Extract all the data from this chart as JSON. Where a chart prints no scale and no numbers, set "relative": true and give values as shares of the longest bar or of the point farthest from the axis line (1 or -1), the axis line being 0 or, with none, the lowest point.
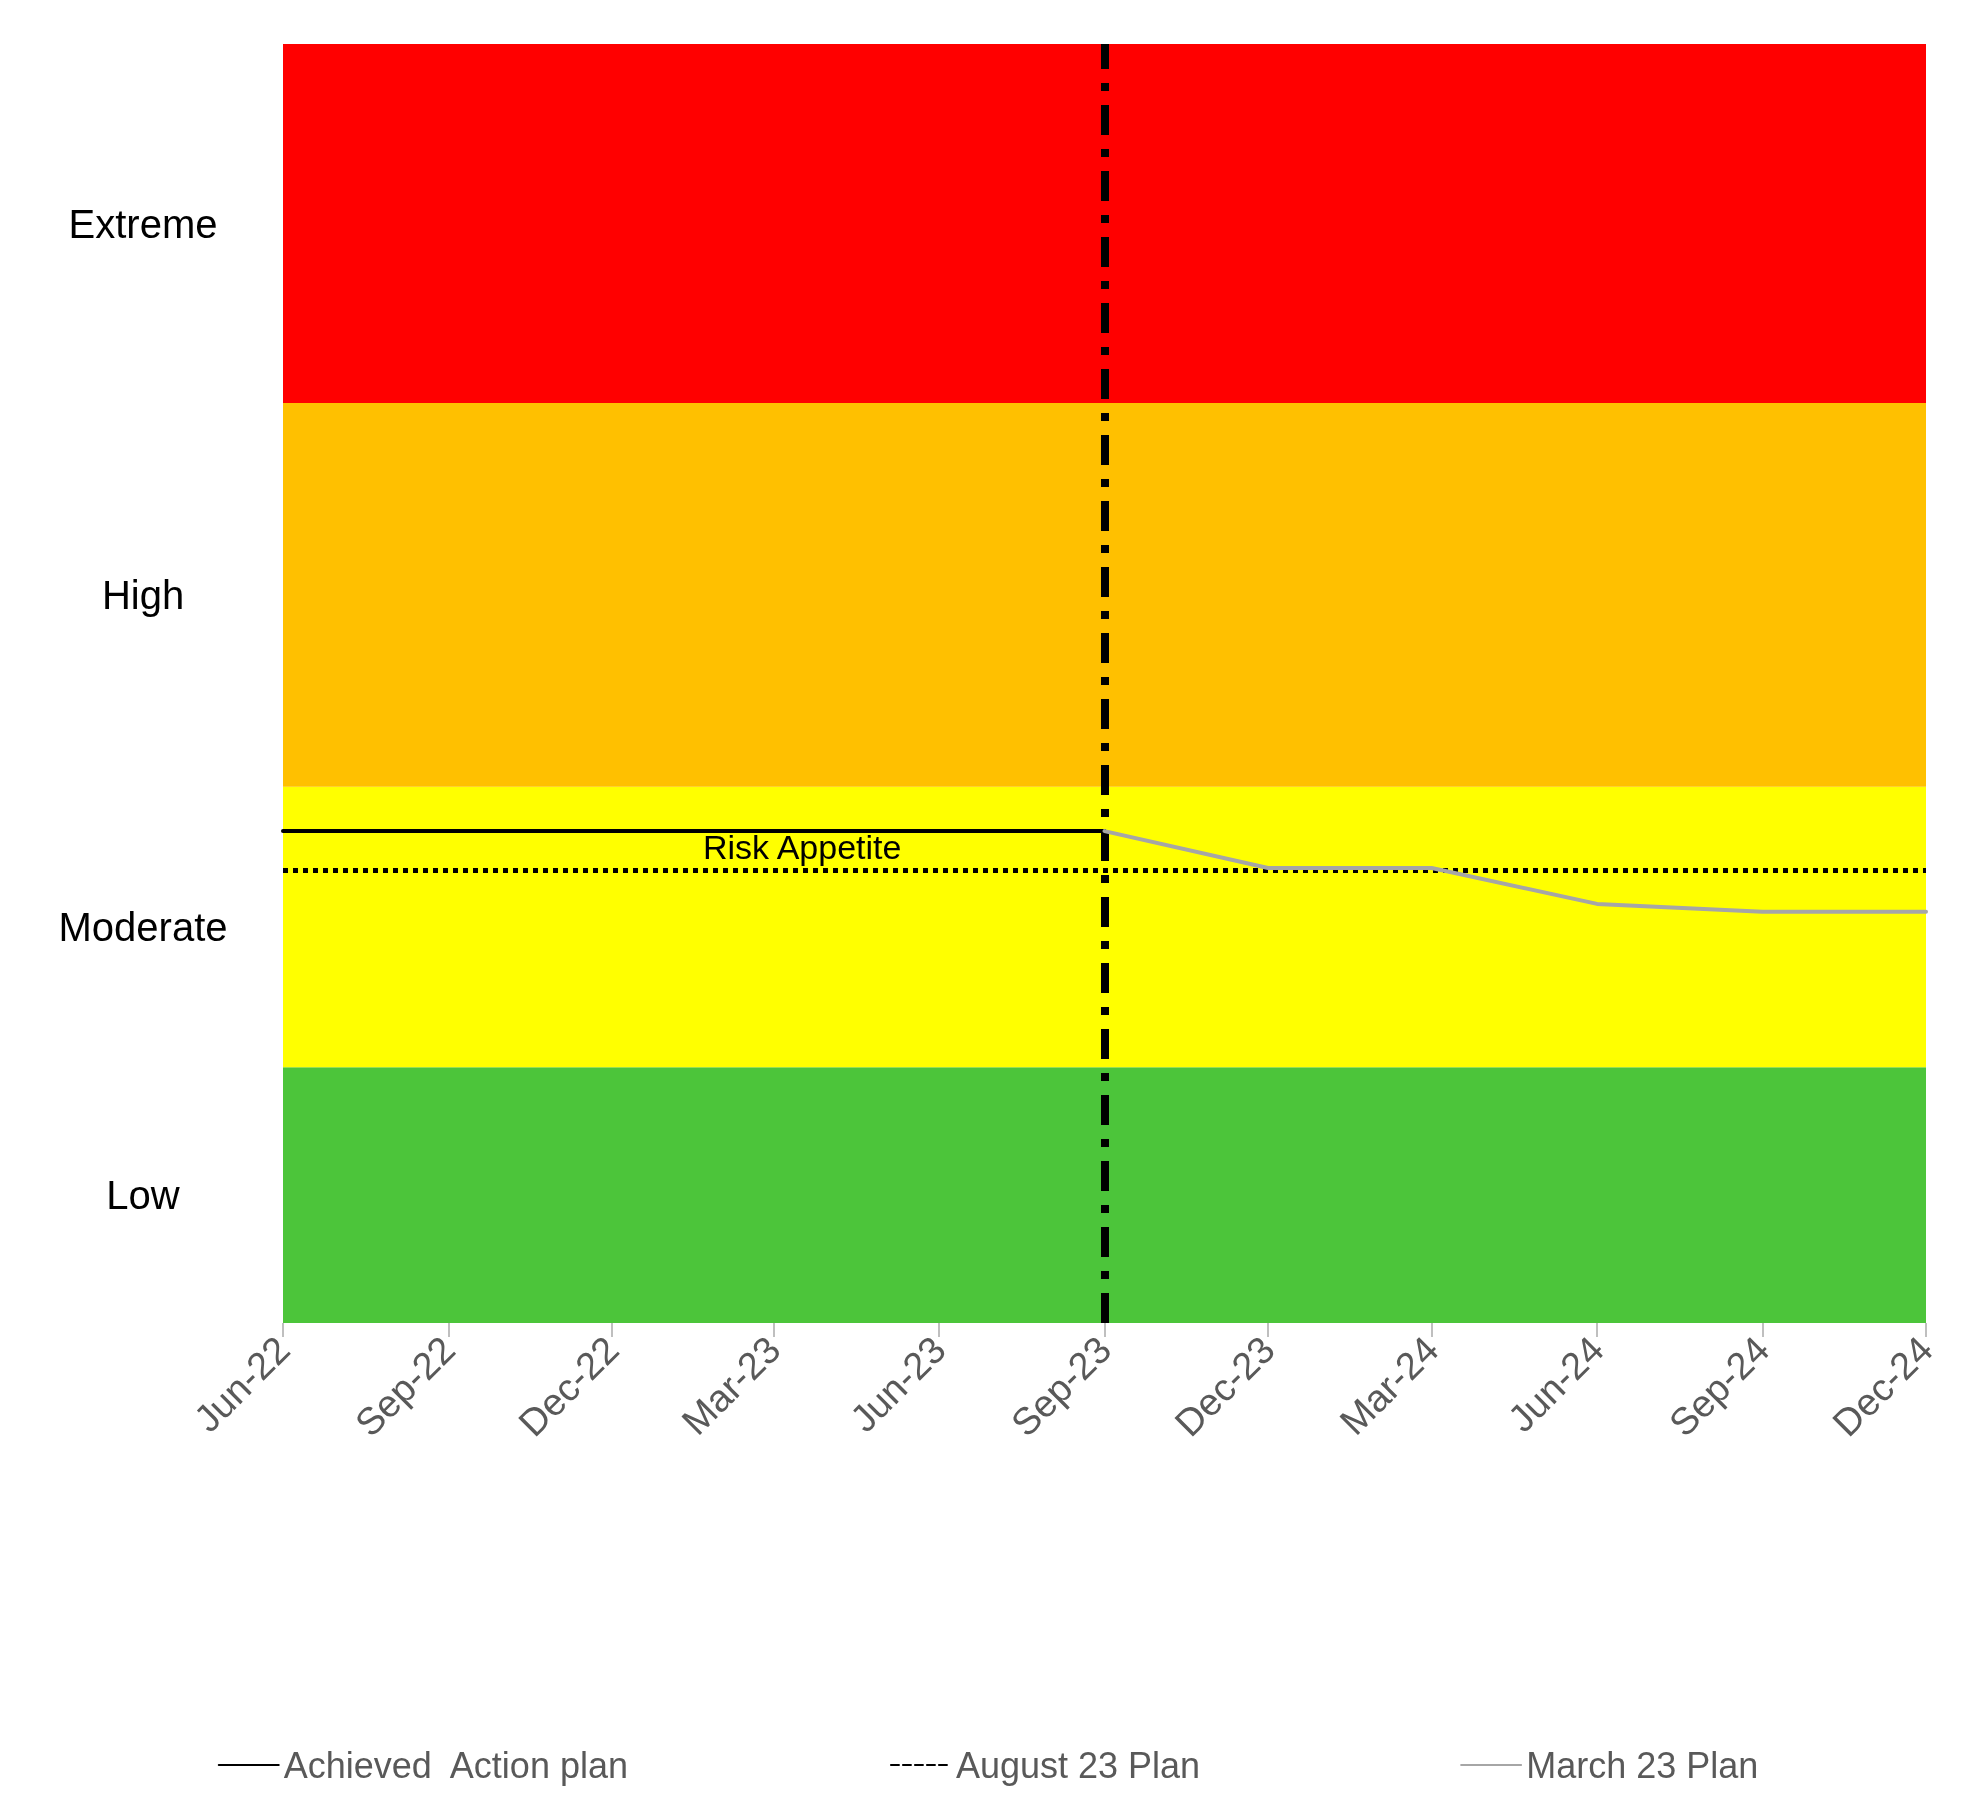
{
  "chart_data": {
    "type": "line",
    "relative": true,
    "series": [
      {
        "name": "Achieved  Action plan",
        "color": "#000000",
        "values": [
          1,
          1
        ],
        "x": [
          "2022-06",
          "2023-09"
        ]
      },
      {
        "name": "August 23 Plan",
        "color": "#000000",
        "line_style": "dashed"
      },
      {
        "name": "March 23 Plan",
        "color": "#a6a6a6",
        "values": [
          1,
          0.925,
          0.925,
          0.852,
          0.836,
          0.836
        ],
        "x": [
          "2023-09",
          "2023-12",
          "2024-03",
          "2024-06",
          "2024-09",
          "2024-12"
        ]
      }
    ],
    "xlim": [
      "2022-06",
      "2024-12"
    ],
    "xticks": [
      {
        "value": "2022-06",
        "label": "Jun-22"
      },
      {
        "value": "2022-09",
        "label": "Sep-22"
      },
      {
        "value": "2022-12",
        "label": "Dec-22"
      },
      {
        "value": "2023-03",
        "label": "Mar-23"
      },
      {
        "value": "2023-06",
        "label": "Jun-23"
      },
      {
        "value": "2023-09",
        "label": "Sep-23"
      },
      {
        "value": "2023-12",
        "label": "Dec-23"
      },
      {
        "value": "2024-03",
        "label": "Mar-24"
      },
      {
        "value": "2024-06",
        "label": "Jun-24"
      },
      {
        "value": "2024-09",
        "label": "Sep-24"
      },
      {
        "value": "2024-12",
        "label": "Dec-24"
      }
    ],
    "bands": [
      {
        "axis": "y",
        "from": 0,
        "to": 0.52,
        "color": "#4cc53a",
        "label": "Low"
      },
      {
        "axis": "y",
        "from": 0.52,
        "to": 1.09,
        "color": "#ffff00",
        "label": "Moderate"
      },
      {
        "axis": "y",
        "from": 1.09,
        "to": 1.87,
        "color": "#ffc000",
        "label": "High"
      },
      {
        "axis": "y",
        "from": 1.87,
        "to": 2.6,
        "color": "#ff0000",
        "label": "Extreme"
      }
    ],
    "ref_lines": [
      {
        "axis": "y",
        "value": 0.92,
        "label": "Risk Appetite",
        "color": "#000000",
        "line_style": "dotted"
      },
      {
        "axis": "x",
        "value": "2023-09",
        "label": null,
        "color": "#000000",
        "line_style": "dashed"
      }
    ],
    "grid": false,
    "legend": "bottom",
    "marker": "none"
  }
}
